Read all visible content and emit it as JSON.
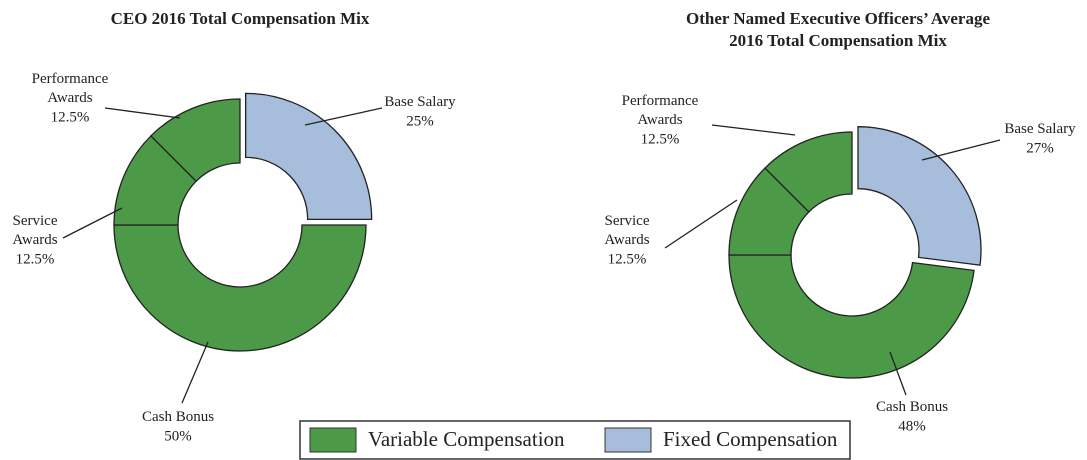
{
  "chart_data": [
    {
      "type": "pie",
      "title": "CEO 2016 Total Compensation Mix",
      "categories": [
        "Base Salary",
        "Cash Bonus",
        "Service Awards",
        "Performance Awards"
      ],
      "values": [
        25,
        50,
        12.5,
        12.5
      ],
      "value_labels": [
        "25%",
        "50%",
        "12.5%",
        "12.5%"
      ],
      "colors": [
        "#a6bddb",
        "#4c9a47",
        "#4c9a47",
        "#4c9a47"
      ]
    },
    {
      "type": "pie",
      "title": "Other Named Executive Officers’ Average 2016 Total Compensation Mix",
      "categories": [
        "Base Salary",
        "Cash Bonus",
        "Service Awards",
        "Performance Awards"
      ],
      "values": [
        27,
        48,
        12.5,
        12.5
      ],
      "value_labels": [
        "27%",
        "48%",
        "12.5%",
        "12.5%"
      ],
      "colors": [
        "#a6bddb",
        "#4c9a47",
        "#4c9a47",
        "#4c9a47"
      ]
    }
  ],
  "legend": [
    {
      "name": "Variable Compensation",
      "color": "#4c9a47"
    },
    {
      "name": "Fixed Compensation",
      "color": "#a6bddb"
    }
  ]
}
